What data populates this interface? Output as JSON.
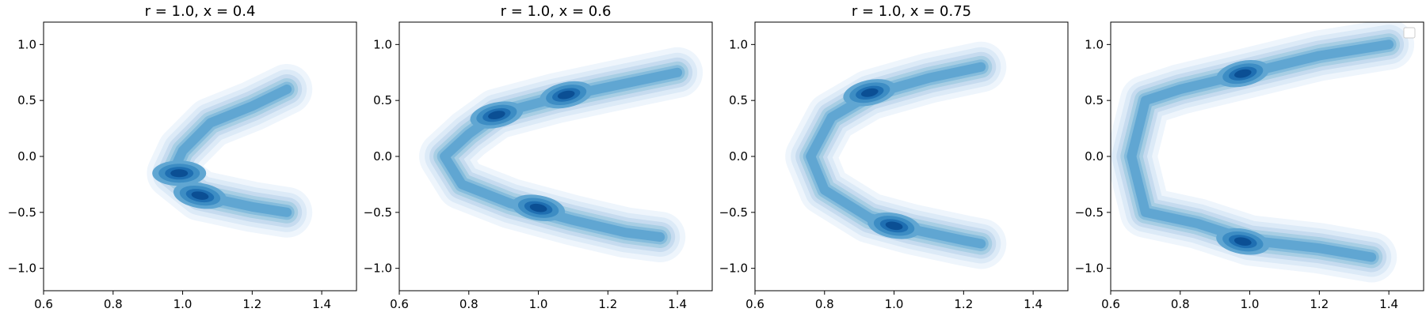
{
  "chart_data": [
    {
      "type": "kde-contour",
      "title": "r = 1.0, x = 0.4",
      "xlim": [
        0.6,
        1.5
      ],
      "ylim": [
        -1.2,
        1.2
      ],
      "xticks": [
        "0.6",
        "0.8",
        "1.0",
        "1.2",
        "1.4"
      ],
      "yticks": [
        "1.0",
        "0.5",
        "0.0",
        "−0.5",
        "−1.0"
      ],
      "grid": false,
      "legend": false,
      "colormap": "Blues",
      "levels": 9,
      "density_ridge": [
        [
          1.3,
          0.6
        ],
        [
          1.2,
          0.45
        ],
        [
          1.08,
          0.3
        ],
        [
          1.0,
          0.05
        ],
        [
          0.97,
          -0.15
        ],
        [
          1.05,
          -0.35
        ],
        [
          1.2,
          -0.45
        ],
        [
          1.3,
          -0.5
        ]
      ],
      "peaks": [
        {
          "x": 0.99,
          "y": -0.15
        },
        {
          "x": 1.05,
          "y": -0.35
        }
      ]
    },
    {
      "type": "kde-contour",
      "title": "r = 1.0, x = 0.6",
      "xlim": [
        0.6,
        1.5
      ],
      "ylim": [
        -1.2,
        1.2
      ],
      "xticks": [
        "0.6",
        "0.8",
        "1.0",
        "1.2",
        "1.4"
      ],
      "yticks": [
        "1.0",
        "0.5",
        "0.0",
        "−0.5",
        "−1.0"
      ],
      "grid": false,
      "legend": false,
      "colormap": "Blues",
      "levels": 9,
      "density_ridge": [
        [
          1.4,
          0.75
        ],
        [
          1.2,
          0.62
        ],
        [
          1.05,
          0.52
        ],
        [
          0.88,
          0.38
        ],
        [
          0.8,
          0.2
        ],
        [
          0.73,
          0.0
        ],
        [
          0.78,
          -0.25
        ],
        [
          0.92,
          -0.42
        ],
        [
          1.1,
          -0.57
        ],
        [
          1.25,
          -0.68
        ],
        [
          1.35,
          -0.72
        ]
      ],
      "peaks": [
        {
          "x": 0.88,
          "y": 0.37
        },
        {
          "x": 1.08,
          "y": 0.55
        },
        {
          "x": 1.0,
          "y": -0.46
        }
      ]
    },
    {
      "type": "kde-contour",
      "title": "r = 1.0, x = 0.75",
      "xlim": [
        0.6,
        1.5
      ],
      "ylim": [
        -1.2,
        1.2
      ],
      "xticks": [
        "0.6",
        "0.8",
        "1.0",
        "1.2",
        "1.4"
      ],
      "yticks": [
        "1.0",
        "0.5",
        "0.0",
        "−0.5",
        "−1.0"
      ],
      "grid": false,
      "legend": false,
      "colormap": "Blues",
      "levels": 9,
      "density_ridge": [
        [
          1.25,
          0.8
        ],
        [
          1.1,
          0.7
        ],
        [
          0.93,
          0.55
        ],
        [
          0.82,
          0.35
        ],
        [
          0.76,
          0.0
        ],
        [
          0.8,
          -0.3
        ],
        [
          0.93,
          -0.55
        ],
        [
          1.05,
          -0.65
        ],
        [
          1.2,
          -0.75
        ],
        [
          1.25,
          -0.78
        ]
      ],
      "peaks": [
        {
          "x": 0.93,
          "y": 0.57
        },
        {
          "x": 1.0,
          "y": -0.62
        }
      ]
    },
    {
      "type": "kde-contour",
      "title": "",
      "xlim": [
        0.6,
        1.5
      ],
      "ylim": [
        -1.2,
        1.2
      ],
      "xticks": [
        "0.6",
        "0.8",
        "1.0",
        "1.2",
        "1.4"
      ],
      "yticks": [
        "1.0",
        "0.5",
        "0.0",
        "−0.5",
        "−1.0"
      ],
      "grid": false,
      "legend": "top-right (empty)",
      "colormap": "Blues",
      "levels": 9,
      "density_ridge": [
        [
          1.4,
          1.0
        ],
        [
          1.2,
          0.9
        ],
        [
          1.0,
          0.75
        ],
        [
          0.8,
          0.6
        ],
        [
          0.7,
          0.5
        ],
        [
          0.66,
          0.0
        ],
        [
          0.7,
          -0.5
        ],
        [
          0.85,
          -0.6
        ],
        [
          1.0,
          -0.75
        ],
        [
          1.2,
          -0.82
        ],
        [
          1.35,
          -0.9
        ]
      ],
      "peaks": [
        {
          "x": 0.98,
          "y": 0.74
        },
        {
          "x": 0.98,
          "y": -0.76
        }
      ]
    }
  ]
}
